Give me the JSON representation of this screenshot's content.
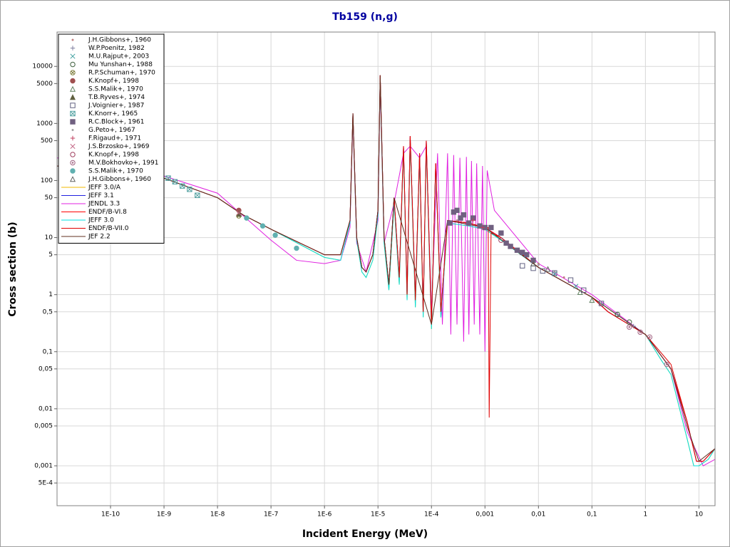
{
  "chart_data": {
    "type": "line",
    "title": "Tb159 (n,g)",
    "x_label": "Incident Energy (MeV)",
    "y_label": "Cross section (b)",
    "xscale": "log",
    "yscale": "log",
    "grid": true,
    "legend": "upper left",
    "xlim": [
      1e-11,
      20
    ],
    "ylim": [
      0.0002,
      40000
    ],
    "xticks": [
      {
        "value": 1e-10,
        "label": "1E-10"
      },
      {
        "value": 1e-09,
        "label": "1E-9"
      },
      {
        "value": 1e-08,
        "label": "1E-8"
      },
      {
        "value": 1e-07,
        "label": "1E-7"
      },
      {
        "value": 1e-06,
        "label": "1E-6"
      },
      {
        "value": 1e-05,
        "label": "1E-5"
      },
      {
        "value": 0.0001,
        "label": "1E-4"
      },
      {
        "value": 0.001,
        "label": "0,001"
      },
      {
        "value": 0.01,
        "label": "0,01"
      },
      {
        "value": 0.1,
        "label": "0,1"
      },
      1,
      10
    ],
    "yticks": [
      10000,
      5000,
      1000,
      500,
      100,
      50,
      10,
      5,
      1,
      {
        "value": 0.5,
        "label": "0,5"
      },
      {
        "value": 0.1,
        "label": "0,1"
      },
      {
        "value": 0.05,
        "label": "0,05"
      },
      {
        "value": 0.01,
        "label": "0,01"
      },
      {
        "value": 0.005,
        "label": "0,005"
      },
      {
        "value": 0.001,
        "label": "0,001"
      },
      {
        "value": 0.0005,
        "label": "5E-4"
      }
    ],
    "series": [
      {
        "name": "J.H.Gibbons+, 1960",
        "color": "#c08080",
        "marker": "dot",
        "x": [
          0.0003,
          0.001,
          0.003,
          0.01,
          0.03
        ],
        "values": [
          20,
          14,
          7,
          3.5,
          2
        ]
      },
      {
        "name": "W.P.Poenitz, 1982",
        "color": "#8080a0",
        "marker": "plus",
        "x": [
          0.15,
          0.3,
          0.6
        ],
        "values": [
          0.7,
          0.45,
          0.28
        ]
      },
      {
        "name": "M.U.Rajput+, 2003",
        "color": "#40a0a0",
        "marker": "cross",
        "x": [
          0.02,
          0.05
        ],
        "values": [
          2.3,
          1.4
        ]
      },
      {
        "name": "Mu Yunshan+, 1988",
        "color": "#406040",
        "marker": "circle",
        "x": [
          0.3,
          0.5
        ],
        "values": [
          0.45,
          0.33
        ]
      },
      {
        "name": "R.P.Schuman+, 1970",
        "color": "#808040",
        "marker": "circle-x",
        "x": [
          2.5e-08
        ],
        "values": [
          24
        ]
      },
      {
        "name": "K.Knopf+, 1998",
        "color": "#a05050",
        "marker": "filled-circle",
        "x": [
          2.5e-08
        ],
        "values": [
          30
        ]
      },
      {
        "name": "S.S.Malik+, 1970",
        "color": "#608060",
        "marker": "triangle",
        "x": [
          0.06,
          0.1
        ],
        "values": [
          1.1,
          0.8
        ]
      },
      {
        "name": "T.B.Ryves+, 1974",
        "color": "#606040",
        "marker": "filled-triangle",
        "x": [
          2.53e-08
        ],
        "values": [
          26
        ]
      },
      {
        "name": "J.Voignier+, 1987",
        "color": "#606080",
        "marker": "square",
        "x": [
          0.005,
          0.008,
          0.012,
          0.02,
          0.04,
          0.07,
          0.15
        ],
        "values": [
          3.2,
          2.9,
          2.6,
          2.4,
          1.8,
          1.2,
          0.7
        ]
      },
      {
        "name": "K.Knorr+, 1965",
        "color": "#50a0a0",
        "marker": "square-x",
        "x": [
          1.2e-09,
          1.6e-09,
          2.2e-09,
          3e-09,
          4.2e-09
        ],
        "values": [
          110,
          95,
          80,
          70,
          55
        ]
      },
      {
        "name": "R.C.Block+, 1961",
        "color": "#706080",
        "marker": "filled-square",
        "x": [
          0.00022,
          0.00026,
          0.0003,
          0.00035,
          0.0004,
          0.0005,
          0.0006,
          0.0008,
          0.001,
          0.0013,
          0.002,
          0.0025,
          0.003,
          0.004,
          0.005,
          0.006,
          0.008
        ],
        "values": [
          18,
          28,
          30,
          22,
          25,
          18,
          22,
          16,
          15,
          15,
          12,
          8,
          7,
          6,
          5.5,
          5,
          4
        ]
      },
      {
        "name": "G.Peto+, 1967",
        "color": "#a0a0a0",
        "marker": "dot",
        "x": [
          0.01,
          0.02
        ],
        "values": [
          3.3,
          2.5
        ]
      },
      {
        "name": "F.Rigaud+, 1971",
        "color": "#c04060",
        "marker": "plus",
        "x": [
          0.0006,
          0.0009
        ],
        "values": [
          20,
          15
        ]
      },
      {
        "name": "J.S.Brzosko+, 1969",
        "color": "#c06080",
        "marker": "cross",
        "x": [
          2.5e-08
        ],
        "values": [
          27
        ]
      },
      {
        "name": "K.Knopf+, 1998",
        "color": "#a04060",
        "marker": "circle",
        "x": [
          0.002
        ],
        "values": [
          9
        ]
      },
      {
        "name": "M.V.Bokhovko+, 1991",
        "color": "#a06080",
        "marker": "circle-dot",
        "x": [
          0.5,
          0.8,
          1.2,
          2.5
        ],
        "values": [
          0.27,
          0.22,
          0.18,
          0.06
        ]
      },
      {
        "name": "S.S.Malik+, 1970",
        "color": "#60b0b0",
        "marker": "filled-circle",
        "x": [
          3.5e-08,
          7e-08,
          1.2e-07,
          3e-07
        ],
        "values": [
          22,
          16,
          11,
          6.5
        ]
      },
      {
        "name": "J.H.Gibbons+, 1960",
        "color": "#606060",
        "marker": "triangle",
        "x": [
          0.008,
          0.015
        ],
        "values": [
          3.5,
          2.8
        ]
      },
      {
        "name": "JEFF 3.0/A",
        "color": "#f0b800",
        "marker": "line",
        "x": [
          1e-11,
          1e-10,
          1e-09,
          1e-08,
          3e-08,
          1e-07,
          1e-06,
          2e-06,
          3e-06,
          3.4e-06,
          4e-06,
          5e-06,
          6e-06,
          8e-06,
          1e-05,
          1.1e-05,
          1.3e-05,
          1.6e-05,
          2e-05,
          2.5e-05,
          3e-05,
          3.5e-05,
          4e-05,
          5e-05,
          6e-05,
          7e-05,
          8e-05,
          0.0001,
          0.00012,
          0.00015,
          0.0002,
          0.0005,
          0.001,
          0.002,
          0.01,
          0.1,
          1,
          2,
          3,
          6,
          8,
          10,
          15,
          20
        ],
        "values": [
          180,
          140,
          110,
          50,
          25,
          14,
          4.5,
          4,
          18,
          1400,
          9,
          2.5,
          2,
          4,
          25,
          6000,
          8,
          1.2,
          40,
          1.5,
          350,
          0.8,
          500,
          0.6,
          250,
          0.4,
          400,
          0.25,
          180,
          0.4,
          18,
          16,
          14,
          9,
          3,
          0.9,
          0.2,
          0.07,
          0.04,
          0.003,
          0.001,
          0.001,
          0.0013,
          0.002
        ]
      },
      {
        "name": "JEFF 3.1",
        "color": "#2020e0",
        "marker": "line",
        "x": [
          1e-11,
          1e-10,
          1e-09,
          1e-08,
          3e-08,
          1e-07,
          1e-06,
          2e-06,
          3e-06,
          3.4e-06,
          4e-06,
          5e-06,
          6e-06,
          8e-06,
          1e-05,
          1.1e-05,
          1.3e-05,
          1.6e-05,
          2e-05,
          2.5e-05,
          3e-05,
          3.5e-05,
          4e-05,
          5e-05,
          6e-05,
          7e-05,
          8e-05,
          0.0001,
          0.00012,
          0.00015,
          0.0002,
          0.0005,
          0.001,
          0.002,
          0.01,
          0.1,
          0.2,
          1,
          3,
          6,
          9,
          12,
          20
        ],
        "values": [
          180,
          140,
          110,
          50,
          25,
          14,
          5,
          5,
          20,
          1500,
          10,
          3,
          2.5,
          5,
          30,
          7000,
          10,
          1.5,
          50,
          2,
          400,
          1,
          600,
          0.8,
          300,
          0.5,
          500,
          0.3,
          200,
          0.5,
          20,
          18,
          15,
          10,
          3,
          0.9,
          0.5,
          0.2,
          0.05,
          0.006,
          0.0012,
          0.0012,
          0.002
        ]
      },
      {
        "name": "JENDL 3.3",
        "color": "#e020e0",
        "marker": "line",
        "x": [
          1e-11,
          1e-10,
          1e-09,
          1e-08,
          1e-07,
          3e-07,
          1e-06,
          2e-06,
          3e-06,
          3.4e-06,
          4e-06,
          6e-06,
          1e-05,
          1.1e-05,
          1.3e-05,
          2e-05,
          3e-05,
          4e-05,
          6e-05,
          8e-05,
          0.0001,
          0.00013,
          0.00016,
          0.0002,
          0.00023,
          0.00026,
          0.0003,
          0.00034,
          0.0004,
          0.00045,
          0.0005,
          0.00056,
          0.00063,
          0.0007,
          0.0008,
          0.0009,
          0.001,
          0.0011,
          0.0015,
          0.01,
          0.1,
          1,
          3,
          6,
          12,
          20
        ],
        "values": [
          250,
          170,
          120,
          60,
          9,
          4,
          3.5,
          4,
          15,
          1200,
          8,
          2.5,
          20,
          5000,
          8,
          40,
          300,
          400,
          250,
          400,
          0.5,
          300,
          0.3,
          300,
          0.2,
          280,
          0.3,
          250,
          0.15,
          260,
          0.2,
          220,
          0.3,
          200,
          0.2,
          180,
          0.1,
          150,
          30,
          3.5,
          1,
          0.2,
          0.05,
          0.004,
          0.001,
          0.0013
        ]
      },
      {
        "name": "ENDF/B-VI.8",
        "color": "#ff0000",
        "marker": "line",
        "x": [
          1e-11,
          1e-10,
          1e-09,
          1e-08,
          3e-08,
          1e-07,
          1e-06,
          2e-06,
          3e-06,
          3.4e-06,
          4e-06,
          5e-06,
          6e-06,
          8e-06,
          1e-05,
          1.1e-05,
          1.3e-05,
          1.6e-05,
          2e-05,
          2.5e-05,
          3e-05,
          3.5e-05,
          4e-05,
          5e-05,
          6e-05,
          7e-05,
          8e-05,
          0.0001,
          0.00012,
          0.00015,
          0.0002,
          0.0005,
          0.001,
          0.002,
          0.01,
          0.1,
          0.2,
          1,
          3,
          6,
          9,
          12,
          20
        ],
        "values": [
          180,
          140,
          110,
          50,
          25,
          14,
          5,
          5,
          20,
          1500,
          10,
          3,
          2.5,
          5,
          30,
          7000,
          10,
          1.5,
          50,
          2,
          400,
          1,
          600,
          0.8,
          300,
          0.5,
          500,
          0.3,
          200,
          0.5,
          20,
          18,
          15,
          10,
          3,
          0.9,
          0.5,
          0.2,
          0.05,
          0.006,
          0.0012,
          0.0012,
          0.002
        ]
      },
      {
        "name": "JEFF 3.0",
        "color": "#00e0e0",
        "marker": "line",
        "x": [
          1e-11,
          1e-10,
          1e-09,
          1e-08,
          3e-08,
          1e-07,
          1e-06,
          2e-06,
          3e-06,
          3.4e-06,
          4e-06,
          5e-06,
          6e-06,
          8e-06,
          1e-05,
          1.1e-05,
          1.3e-05,
          1.6e-05,
          2e-05,
          2.5e-05,
          3e-05,
          3.5e-05,
          4e-05,
          5e-05,
          6e-05,
          7e-05,
          8e-05,
          0.0001,
          0.00012,
          0.00015,
          0.0002,
          0.0005,
          0.001,
          0.002,
          0.01,
          0.1,
          1,
          2,
          3,
          6,
          8,
          10,
          15,
          20
        ],
        "values": [
          180,
          140,
          110,
          50,
          25,
          14,
          4.5,
          4,
          18,
          1400,
          9,
          2.5,
          2,
          4,
          25,
          6000,
          8,
          1.2,
          40,
          1.5,
          350,
          0.8,
          500,
          0.6,
          250,
          0.4,
          400,
          0.25,
          180,
          0.4,
          18,
          16,
          14,
          9,
          3,
          0.9,
          0.2,
          0.07,
          0.04,
          0.003,
          0.001,
          0.001,
          0.0013,
          0.002
        ]
      },
      {
        "name": "ENDF/B-VII.0",
        "color": "#e00000",
        "marker": "line",
        "x": [
          1e-11,
          1e-10,
          1e-09,
          1e-08,
          3e-08,
          1e-07,
          1e-06,
          2e-06,
          3e-06,
          3.4e-06,
          4e-06,
          5e-06,
          6e-06,
          8e-06,
          1e-05,
          1.1e-05,
          1.3e-05,
          1.6e-05,
          2e-05,
          2.5e-05,
          3e-05,
          3.5e-05,
          4e-05,
          5e-05,
          6e-05,
          7e-05,
          8e-05,
          0.0001,
          0.00012,
          0.00015,
          0.0002,
          0.0005,
          0.001,
          0.00115,
          0.0012,
          0.0013,
          0.002,
          0.01,
          0.1,
          0.2,
          1,
          3,
          6,
          9,
          12,
          20
        ],
        "values": [
          180,
          140,
          110,
          50,
          25,
          14,
          5,
          5,
          20,
          1500,
          10,
          3,
          2.5,
          5,
          30,
          7000,
          10,
          1.5,
          50,
          2,
          400,
          1,
          600,
          0.8,
          300,
          0.5,
          500,
          0.3,
          200,
          0.5,
          20,
          18,
          15,
          15,
          0.007,
          12,
          10,
          3,
          0.9,
          0.5,
          0.2,
          0.06,
          0.006,
          0.0012,
          0.0012,
          0.002
        ]
      },
      {
        "name": "JEF 2.2",
        "color": "#603020",
        "marker": "line",
        "x": [
          1e-11,
          1e-10,
          1e-09,
          1e-08,
          3e-08,
          1e-07,
          1e-06,
          2e-06,
          3e-06,
          3.4e-06,
          4e-06,
          5e-06,
          6e-06,
          8e-06,
          1e-05,
          1.1e-05,
          1.3e-05,
          1.6e-05,
          2e-05,
          0.0001,
          0.0002,
          0.001,
          0.01,
          0.1,
          1,
          3,
          6,
          10,
          20
        ],
        "values": [
          180,
          140,
          110,
          50,
          25,
          14,
          5,
          5,
          20,
          1500,
          10,
          3,
          2.5,
          5,
          30,
          7000,
          10,
          1.5,
          50,
          0.3,
          20,
          15,
          3,
          0.9,
          0.2,
          0.05,
          0.005,
          0.0012,
          0.002
        ]
      }
    ]
  }
}
